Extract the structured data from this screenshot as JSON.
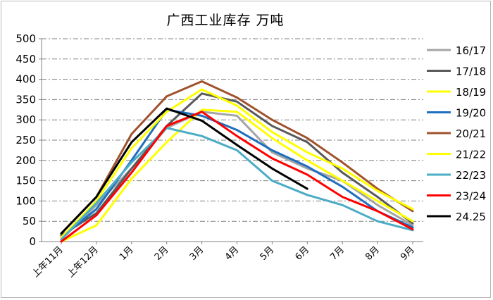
{
  "chart_data": {
    "type": "line",
    "title": "广西工业库存 万吨",
    "xlabel": "",
    "ylabel": "",
    "ylim": [
      0,
      500
    ],
    "yticks": [
      0,
      50,
      100,
      150,
      200,
      250,
      300,
      350,
      400,
      450,
      500
    ],
    "grid": "horizontal dash-dot",
    "legend_position": "right",
    "categories": [
      "上年11月",
      "上年12月",
      "1月",
      "2月",
      "3月",
      "4月",
      "5月",
      "6月",
      "7月",
      "8月",
      "9月"
    ],
    "series": [
      {
        "name": "16/17",
        "color": "#a5a5a5",
        "values": [
          5,
          90,
          180,
          280,
          320,
          310,
          220,
          180,
          150,
          90,
          40
        ]
      },
      {
        "name": "17/18",
        "color": "#595959",
        "values": [
          15,
          70,
          180,
          285,
          365,
          345,
          285,
          245,
          170,
          110,
          45
        ]
      },
      {
        "name": "18/19",
        "color": "#ffff00",
        "values": [
          0,
          40,
          155,
          245,
          325,
          320,
          255,
          200,
          150,
          100,
          50
        ]
      },
      {
        "name": "19/20",
        "color": "#1f6fbf",
        "values": [
          10,
          80,
          200,
          325,
          310,
          275,
          225,
          185,
          135,
          75,
          35
        ]
      },
      {
        "name": "20/21",
        "color": "#a0522d",
        "values": [
          20,
          110,
          265,
          358,
          395,
          355,
          300,
          255,
          195,
          130,
          75
        ]
      },
      {
        "name": "21/22",
        "color": "#ffff00",
        "values": [
          10,
          100,
          230,
          320,
          375,
          335,
          270,
          220,
          180,
          125,
          80
        ]
      },
      {
        "name": "22/23",
        "color": "#4bacc6",
        "values": [
          5,
          95,
          195,
          280,
          260,
          225,
          150,
          115,
          90,
          50,
          28
        ]
      },
      {
        "name": "23/24",
        "color": "#ff0000",
        "values": [
          0,
          65,
          170,
          285,
          320,
          260,
          205,
          165,
          110,
          75,
          30
        ]
      },
      {
        "name": "24.25",
        "color": "#000000",
        "values": [
          20,
          110,
          245,
          328,
          298,
          238,
          180,
          130,
          null,
          null,
          null
        ]
      }
    ]
  }
}
